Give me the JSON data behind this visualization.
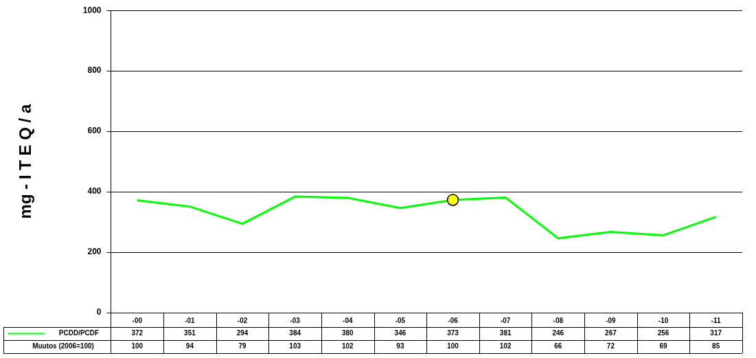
{
  "chart_data": {
    "type": "line",
    "ylabel": "mg - I T E Q / a",
    "categories": [
      "-00",
      "-01",
      "-02",
      "-03",
      "-04",
      "-05",
      "-06",
      "-07",
      "-08",
      "-09",
      "-10",
      "-11"
    ],
    "series": [
      {
        "name": "PCDD/PCDF",
        "color": "#00ff00",
        "marker": "none",
        "values": [
          372,
          351,
          294,
          384,
          380,
          346,
          373,
          381,
          246,
          267,
          256,
          317
        ],
        "value_labels": [
          "372",
          "351",
          "294",
          "384",
          "380",
          "346",
          "373",
          "381",
          "246",
          "267",
          "256",
          "317"
        ]
      },
      {
        "type": "scatter",
        "color": "#ffff00",
        "marker": "circle",
        "x": [
          "-06"
        ],
        "values": [
          373
        ]
      }
    ],
    "ylim": [
      0,
      1000
    ],
    "yticks": [
      0,
      200,
      400,
      600,
      800,
      1000
    ],
    "grid": "y",
    "legend": "bottom",
    "annotations": [
      "Muutos (2006=100)",
      "100",
      "94",
      "79",
      "103",
      "102",
      "93",
      "100",
      "102",
      "66",
      "72",
      "69",
      "85"
    ]
  }
}
